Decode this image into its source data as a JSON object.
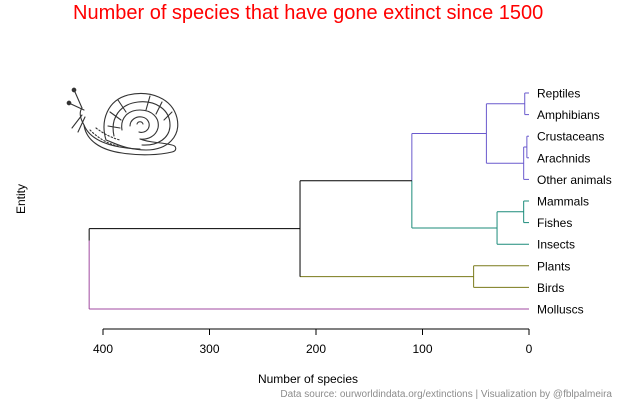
{
  "chart_data": {
    "type": "dendrogram",
    "title": "Number of species that have gone extinct since 1500",
    "xlabel": "Number of species",
    "ylabel": "Entity",
    "caption": "Data source: ourworldindata.org/extinctions | Visualization by @fblpalmeira",
    "xlim": [
      415,
      0
    ],
    "x_ticks": [
      400,
      300,
      200,
      100,
      0
    ],
    "leaves": [
      "Reptiles",
      "Amphibians",
      "Crustaceans",
      "Arachnids",
      "Other animals",
      "Mammals",
      "Fishes",
      "Insects",
      "Plants",
      "Birds",
      "Molluscs"
    ],
    "merges": [
      {
        "id": "n1",
        "children": [
          "Crustaceans",
          "Arachnids"
        ],
        "height": 2,
        "color": "#6a5acd"
      },
      {
        "id": "n2",
        "children": [
          "Reptiles",
          "Amphibians"
        ],
        "height": 4,
        "color": "#6a5acd"
      },
      {
        "id": "n3",
        "children": [
          "n1",
          "Other animals"
        ],
        "height": 5,
        "color": "#6a5acd"
      },
      {
        "id": "n4",
        "children": [
          "Mammals",
          "Fishes"
        ],
        "height": 5,
        "color": "#1b8b7a"
      },
      {
        "id": "n5",
        "children": [
          "n2",
          "n3"
        ],
        "height": 40,
        "color": "#6a5acd"
      },
      {
        "id": "n6",
        "children": [
          "n4",
          "Insects"
        ],
        "height": 30,
        "color": "#1b8b7a"
      },
      {
        "id": "n7",
        "children": [
          "Plants",
          "Birds"
        ],
        "height": 52,
        "color": "#7a7a1a"
      },
      {
        "id": "n8",
        "children": [
          "n5",
          "n6"
        ],
        "height": 110,
        "color": "#000000"
      },
      {
        "id": "n9",
        "children": [
          "n8",
          "n7"
        ],
        "height": 215,
        "color": "#000000"
      },
      {
        "id": "n10",
        "children": [
          "n9",
          "Molluscs"
        ],
        "height": 413,
        "color": "#000000"
      }
    ],
    "cluster_colors": {
      "Reptiles": "#6a5acd",
      "Amphibians": "#6a5acd",
      "Crustaceans": "#6a5acd",
      "Arachnids": "#6a5acd",
      "Other animals": "#6a5acd",
      "Mammals": "#1b8b7a",
      "Fishes": "#1b8b7a",
      "Insects": "#1b8b7a",
      "Plants": "#7a7a1a",
      "Birds": "#7a7a1a",
      "Molluscs": "#a04aa0"
    },
    "title_color": "#ff0000",
    "illustration": "snail-icon"
  }
}
